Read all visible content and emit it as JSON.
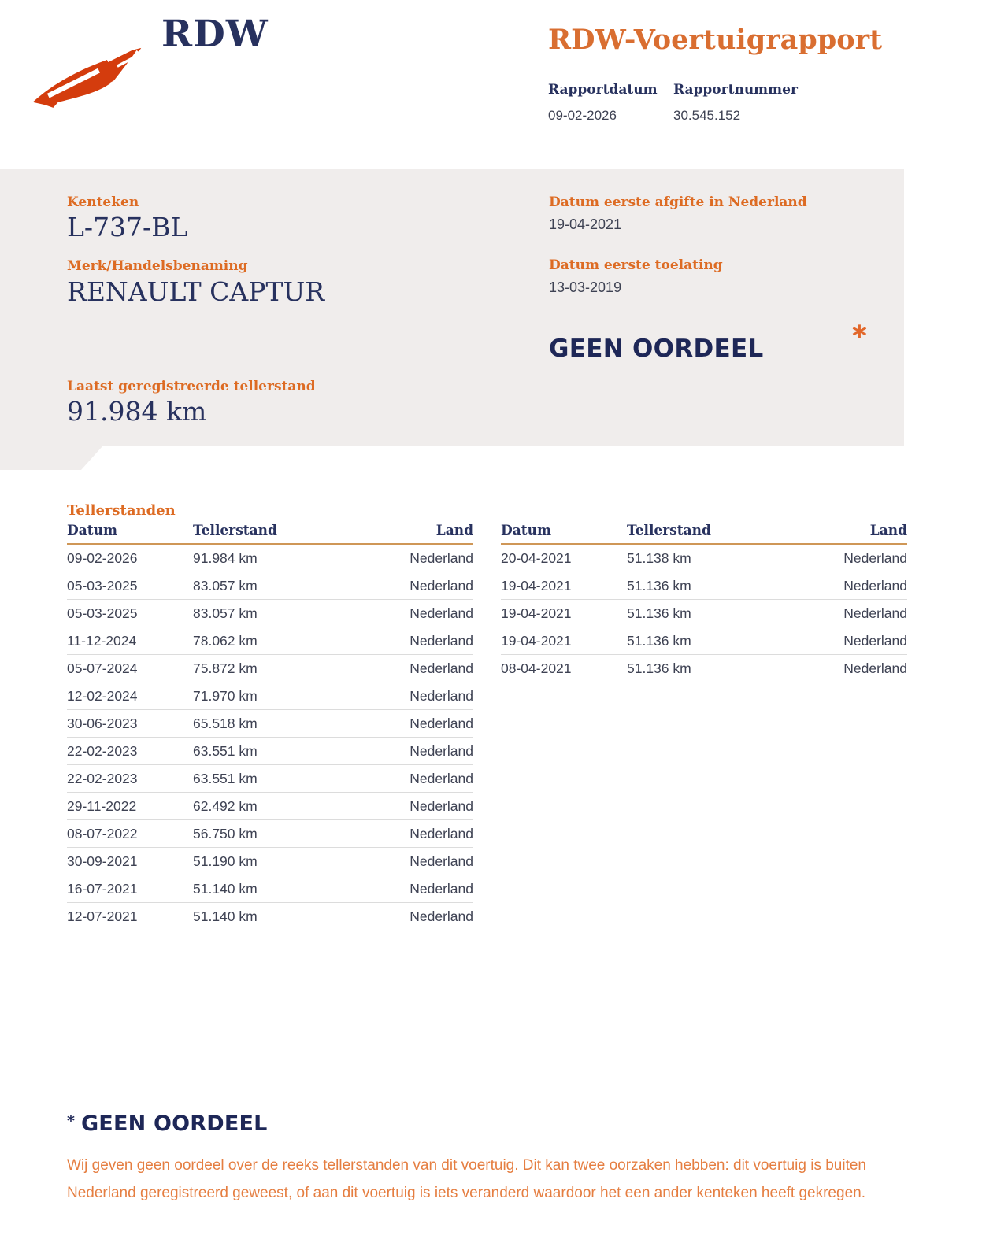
{
  "header": {
    "brand": "RDW",
    "title": "RDW-Voertuigrapport",
    "report_date_label": "Rapportdatum",
    "report_date": "09-02-2026",
    "report_number_label": "Rapportnummer",
    "report_number": "30.545.152"
  },
  "summary": {
    "kenteken_label": "Kenteken",
    "kenteken": "L-737-BL",
    "merk_label": "Merk/Handelsbenaming",
    "merk": "RENAULT CAPTUR",
    "afgifte_label": "Datum eerste afgifte in Nederland",
    "afgifte": "19-04-2021",
    "toelating_label": "Datum eerste toelating",
    "toelating": "13-03-2019",
    "verdict": "GEEN OORDEEL",
    "verdict_marker": "*",
    "tellerstand_label": "Laatst geregistreerde tellerstand",
    "tellerstand": "91.984 km"
  },
  "tables": {
    "section_title": "Tellerstanden",
    "col_datum": "Datum",
    "col_tellerstand": "Tellerstand",
    "col_land": "Land",
    "left_rows": [
      {
        "datum": "09-02-2026",
        "tellerstand": "91.984 km",
        "land": "Nederland"
      },
      {
        "datum": "05-03-2025",
        "tellerstand": "83.057 km",
        "land": "Nederland"
      },
      {
        "datum": "05-03-2025",
        "tellerstand": "83.057 km",
        "land": "Nederland"
      },
      {
        "datum": "11-12-2024",
        "tellerstand": "78.062 km",
        "land": "Nederland"
      },
      {
        "datum": "05-07-2024",
        "tellerstand": "75.872 km",
        "land": "Nederland"
      },
      {
        "datum": "12-02-2024",
        "tellerstand": "71.970 km",
        "land": "Nederland"
      },
      {
        "datum": "30-06-2023",
        "tellerstand": "65.518 km",
        "land": "Nederland"
      },
      {
        "datum": "22-02-2023",
        "tellerstand": "63.551 km",
        "land": "Nederland"
      },
      {
        "datum": "22-02-2023",
        "tellerstand": "63.551 km",
        "land": "Nederland"
      },
      {
        "datum": "29-11-2022",
        "tellerstand": "62.492 km",
        "land": "Nederland"
      },
      {
        "datum": "08-07-2022",
        "tellerstand": "56.750 km",
        "land": "Nederland"
      },
      {
        "datum": "30-09-2021",
        "tellerstand": "51.190 km",
        "land": "Nederland"
      },
      {
        "datum": "16-07-2021",
        "tellerstand": "51.140 km",
        "land": "Nederland"
      },
      {
        "datum": "12-07-2021",
        "tellerstand": "51.140 km",
        "land": "Nederland"
      }
    ],
    "right_rows": [
      {
        "datum": "20-04-2021",
        "tellerstand": "51.138 km",
        "land": "Nederland"
      },
      {
        "datum": "19-04-2021",
        "tellerstand": "51.136 km",
        "land": "Nederland"
      },
      {
        "datum": "19-04-2021",
        "tellerstand": "51.136 km",
        "land": "Nederland"
      },
      {
        "datum": "19-04-2021",
        "tellerstand": "51.136 km",
        "land": "Nederland"
      },
      {
        "datum": "08-04-2021",
        "tellerstand": "51.136 km",
        "land": "Nederland"
      }
    ]
  },
  "footnote": {
    "marker": "*",
    "title": "GEEN OORDEEL",
    "text": "Wij geven geen oordeel over de reeks tellerstanden van dit voertuig. Dit kan twee oorzaken hebben: dit voertuig is buiten Nederland geregistreerd geweest, of aan dit voertuig is iets veranderd waardoor het een ander kenteken heeft gekregen."
  },
  "colors": {
    "orange": "#dd6b23",
    "orange_light": "#e57e41",
    "navy": "#27315e",
    "verdict_navy": "#1e2757",
    "logo_red": "#d43c0d",
    "panel_bg": "#f0edec",
    "cell_text": "#3e4253",
    "header_underline": "#cf9757",
    "row_border": "#dcdcdc"
  }
}
